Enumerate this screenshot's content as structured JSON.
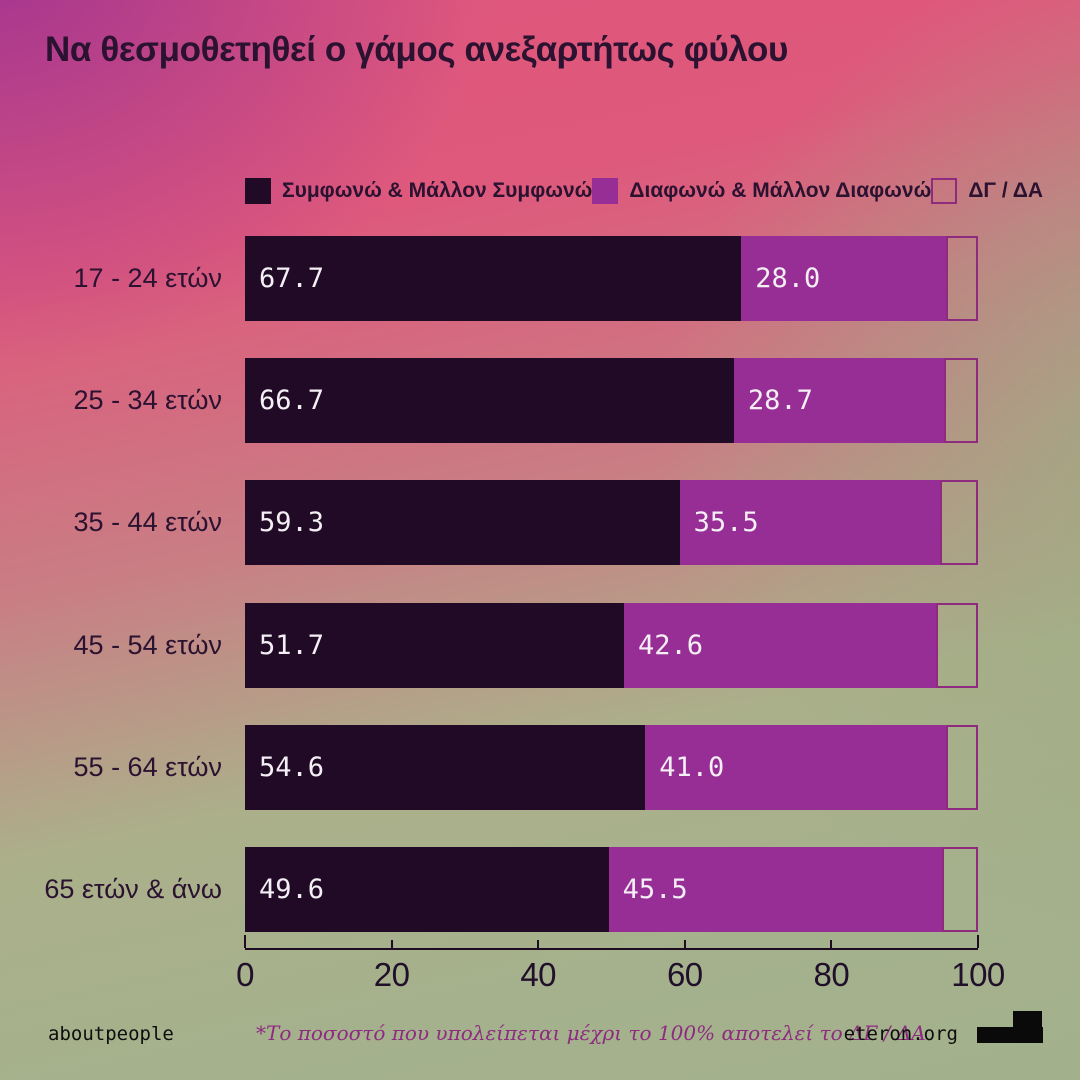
{
  "title": "Να θεσμοθετηθεί ο γάμος ανεξαρτήτως φύλου",
  "legend": [
    {
      "label": "Συμφωνώ & Μάλλον Συμφωνώ",
      "color": "#200a26",
      "outlined": false
    },
    {
      "label": "Διαφωνώ & Μάλλον Διαφωνώ",
      "color": "#972e95",
      "outlined": false
    },
    {
      "label": "ΔΓ / ΔΑ",
      "color": "transparent",
      "outlined": true
    }
  ],
  "chart_data": {
    "type": "bar",
    "orientation": "horizontal",
    "stacked": true,
    "title": "Να θεσμοθετηθεί ο γάμος ανεξαρτήτως φύλου",
    "categories": [
      "17 - 24 ετών",
      "25 - 34 ετών",
      "35 - 44 ετών",
      "45 - 54 ετών",
      "55 - 64 ετών",
      "65 ετών & άνω"
    ],
    "series": [
      {
        "name": "Συμφωνώ & Μάλλον Συμφωνώ",
        "color": "#200a26",
        "values": [
          67.7,
          66.7,
          59.3,
          51.7,
          54.6,
          49.6
        ],
        "value_labels": [
          "67.7",
          "66.7",
          "59.3",
          "51.7",
          "54.6",
          "49.6"
        ]
      },
      {
        "name": "Διαφωνώ & Μάλλον Διαφωνώ",
        "color": "#972e95",
        "values": [
          28.0,
          28.7,
          35.5,
          42.6,
          41.0,
          45.5
        ],
        "value_labels": [
          "28.0",
          "28.7",
          "35.5",
          "42.6",
          "41.0",
          "45.5"
        ]
      },
      {
        "name": "ΔΓ / ΔΑ",
        "color": "transparent",
        "values": [
          4.3,
          4.6,
          5.2,
          5.7,
          4.4,
          4.9
        ],
        "value_labels": [
          "",
          "",
          "",
          "",
          "",
          ""
        ]
      }
    ],
    "x_ticks": [
      "0",
      "20",
      "40",
      "60",
      "80",
      "100"
    ],
    "xlim": [
      0,
      100
    ],
    "grid": false,
    "legend_position": "top"
  },
  "footer": {
    "left": "aboutpeople",
    "note": "*Το ποσοστό που υπολείπεται μέχρι το 100% αποτελεί το ΔΓ / ΔΑ",
    "right": "eteron.org",
    "logo": "step-blocks-icon"
  },
  "colors": {
    "agree": "#200a26",
    "disagree": "#972e95",
    "dgda_border": "#8e2b7e",
    "text_dark": "#2a1230",
    "value_text": "#f4eff4",
    "note_text": "#8e2b80",
    "bg_top_left": "#9d3192",
    "bg_pink": "#e0577d",
    "bg_green": "#a2b18c"
  }
}
